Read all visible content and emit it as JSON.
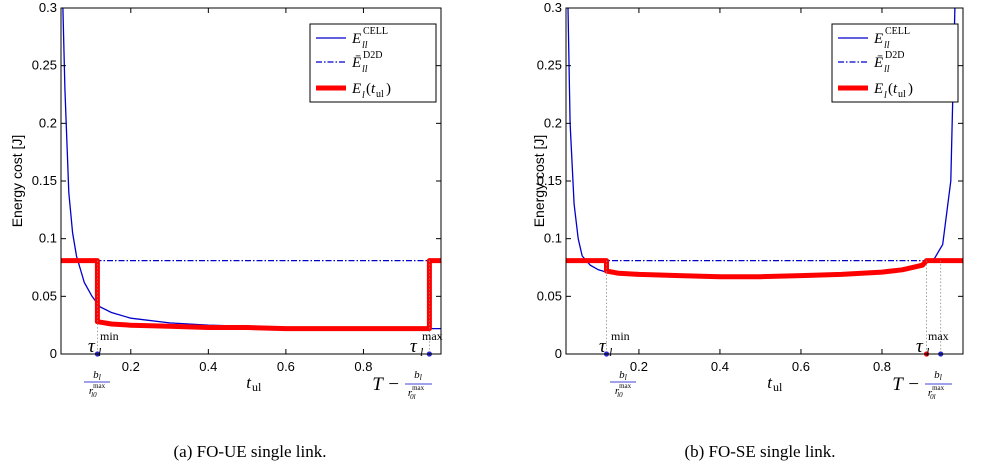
{
  "chart_data": [
    {
      "type": "line",
      "ylabel": "Energy cost [J]",
      "xlabel": "t_ul",
      "xlim": [
        0.02,
        1.0
      ],
      "ylim": [
        0,
        0.3
      ],
      "x_ticks": [
        "0.2",
        "0.4",
        "0.6",
        "0.8"
      ],
      "y_ticks": [
        "0",
        "0.05",
        "0.1",
        "0.15",
        "0.2",
        "0.25",
        "0.3"
      ],
      "legend_position": "top-right",
      "legend": [
        "E_ll^CELL",
        "Ē_ll^D2D",
        "E_l(t_ul)"
      ],
      "caption": "(a)  FO-UE single link.",
      "series": [
        {
          "name": "E_ll^CELL",
          "color": "#0000cc",
          "style": "solid",
          "x": [
            0.025,
            0.03,
            0.04,
            0.05,
            0.06,
            0.08,
            0.1,
            0.12,
            0.15,
            0.2,
            0.3,
            0.4,
            0.5,
            0.6,
            0.7,
            0.8,
            0.9,
            0.95,
            1.0
          ],
          "y": [
            0.3,
            0.23,
            0.14,
            0.105,
            0.085,
            0.062,
            0.05,
            0.041,
            0.036,
            0.031,
            0.027,
            0.025,
            0.024,
            0.023,
            0.023,
            0.022,
            0.022,
            0.022,
            0.022
          ]
        },
        {
          "name": "Ē_ll^D2D",
          "color": "#0000cc",
          "style": "dashdot",
          "x": [
            0.02,
            1.0
          ],
          "y": [
            0.081,
            0.081
          ]
        },
        {
          "name": "E_l(t_ul)",
          "color": "#ff0000",
          "style": "thick",
          "x": [
            0.02,
            0.114,
            0.114,
            0.15,
            0.2,
            0.3,
            0.4,
            0.5,
            0.6,
            0.7,
            0.8,
            0.92,
            0.97,
            0.97,
            1.0
          ],
          "y": [
            0.081,
            0.081,
            0.028,
            0.026,
            0.025,
            0.024,
            0.023,
            0.023,
            0.022,
            0.022,
            0.022,
            0.022,
            0.022,
            0.081,
            0.081
          ]
        }
      ],
      "markers": [
        {
          "x": 0.114,
          "guide": true
        },
        {
          "x": 0.97,
          "guide": true
        }
      ],
      "annotations": {
        "tau_min": "τ_l^min",
        "tau_max": "τ_l^max",
        "left_below": "b_l / r_l0^max",
        "right_below": "T − b_l / r_0l^max"
      }
    },
    {
      "type": "line",
      "ylabel": "Energy cost [J]",
      "xlabel": "t_ul",
      "xlim": [
        0.02,
        1.0
      ],
      "ylim": [
        0,
        0.3
      ],
      "x_ticks": [
        "0.2",
        "0.4",
        "0.6",
        "0.8"
      ],
      "y_ticks": [
        "0",
        "0.05",
        "0.1",
        "0.15",
        "0.2",
        "0.25",
        "0.3"
      ],
      "legend_position": "top-right",
      "legend": [
        "E_ll^CELL",
        "Ē_ll^D2D",
        "E_l(t_ul)"
      ],
      "caption": "(b)  FO-SE single link.",
      "series": [
        {
          "name": "E_ll^CELL",
          "color": "#0000cc",
          "style": "solid",
          "x": [
            0.025,
            0.03,
            0.04,
            0.05,
            0.06,
            0.08,
            0.1,
            0.12,
            0.15,
            0.2,
            0.3,
            0.4,
            0.5,
            0.6,
            0.7,
            0.8,
            0.85,
            0.9,
            0.93,
            0.95,
            0.97,
            0.98
          ],
          "y": [
            0.3,
            0.2,
            0.13,
            0.1,
            0.085,
            0.077,
            0.073,
            0.071,
            0.07,
            0.069,
            0.068,
            0.067,
            0.067,
            0.068,
            0.069,
            0.071,
            0.073,
            0.077,
            0.083,
            0.095,
            0.15,
            0.3
          ]
        },
        {
          "name": "Ē_ll^D2D",
          "color": "#0000cc",
          "style": "dashdot",
          "x": [
            0.02,
            1.0
          ],
          "y": [
            0.081,
            0.081
          ]
        },
        {
          "name": "E_l(t_ul)",
          "color": "#ff0000",
          "style": "thick",
          "x": [
            0.02,
            0.12,
            0.12,
            0.15,
            0.2,
            0.3,
            0.4,
            0.5,
            0.6,
            0.7,
            0.8,
            0.85,
            0.9,
            0.91,
            1.0
          ],
          "y": [
            0.081,
            0.081,
            0.072,
            0.07,
            0.069,
            0.068,
            0.067,
            0.067,
            0.068,
            0.069,
            0.071,
            0.073,
            0.077,
            0.081,
            0.081
          ]
        }
      ],
      "markers": [
        {
          "x": 0.12,
          "guide": true
        },
        {
          "x": 0.91,
          "guide": true
        },
        {
          "x": 0.945,
          "guide": true
        }
      ],
      "annotations": {
        "tau_min": "τ_l^min",
        "tau_max": "τ_l^max",
        "left_below": "b_l / r_l0^max",
        "right_below": "T − b_l / r_0l^max"
      }
    }
  ]
}
